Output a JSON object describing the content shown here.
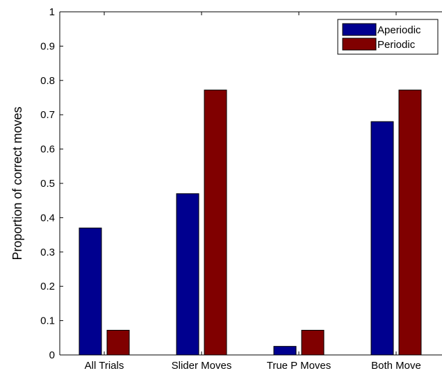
{
  "chart_data": {
    "type": "bar",
    "title": "",
    "xlabel": "",
    "ylabel": "Proportion of correct moves",
    "categories": [
      "All Trials",
      "Slider Moves",
      "True P Moves",
      "Both Move"
    ],
    "series": [
      {
        "name": "Aperiodic",
        "values": [
          0.37,
          0.47,
          0.025,
          0.68
        ],
        "color": "#00008f"
      },
      {
        "name": "Periodic",
        "values": [
          0.072,
          0.772,
          0.072,
          0.772
        ],
        "color": "#800000"
      }
    ],
    "ylim": [
      0,
      1
    ],
    "yticks": [
      0,
      0.1,
      0.2,
      0.3,
      0.4,
      0.5,
      0.6,
      0.7,
      0.8,
      0.9,
      1
    ],
    "ytick_labels": [
      "0",
      "0.1",
      "0.2",
      "0.3",
      "0.4",
      "0.5",
      "0.6",
      "0.7",
      "0.8",
      "0.9",
      "1"
    ],
    "grid": false,
    "legend_position": "top-right"
  }
}
